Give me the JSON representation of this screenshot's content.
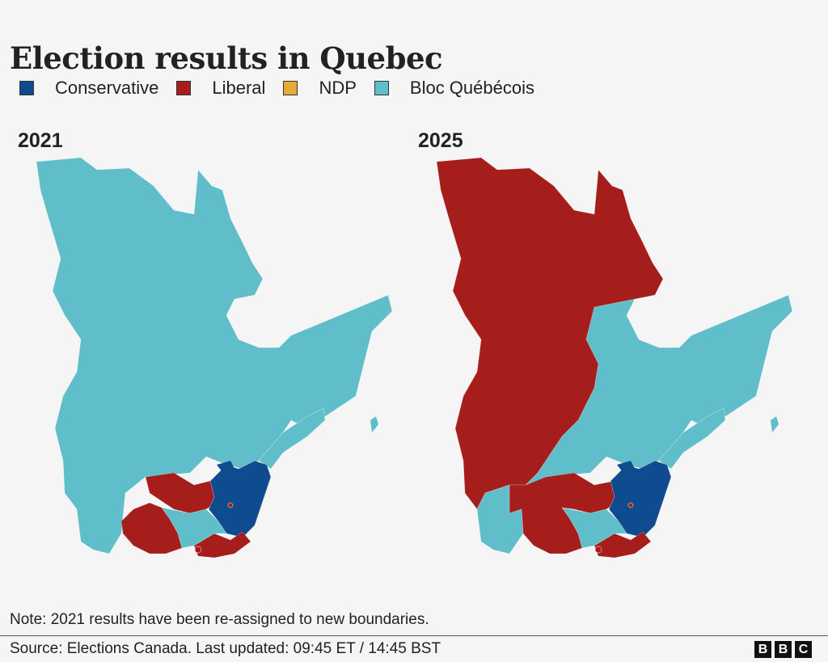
{
  "title": "Election results in Quebec",
  "legend": [
    {
      "label": "Conservative",
      "color": "#0f4c8f"
    },
    {
      "label": "Liberal",
      "color": "#a61e1b"
    },
    {
      "label": "NDP",
      "color": "#e8a93b"
    },
    {
      "label": "Bloc Québécois",
      "color": "#5fbec9"
    }
  ],
  "maps": [
    {
      "year": "2021",
      "dominant_party": "Bloc Québécois",
      "north_region_party": "Bloc Québécois"
    },
    {
      "year": "2025",
      "dominant_party": "Liberal",
      "north_region_party": "Liberal"
    }
  ],
  "note": "Note: 2021 results have been re-assigned to new boundaries.",
  "source": "Source: Elections Canada. Last updated: 09:45 ET / 14:45 BST",
  "logo": [
    "B",
    "B",
    "C"
  ]
}
